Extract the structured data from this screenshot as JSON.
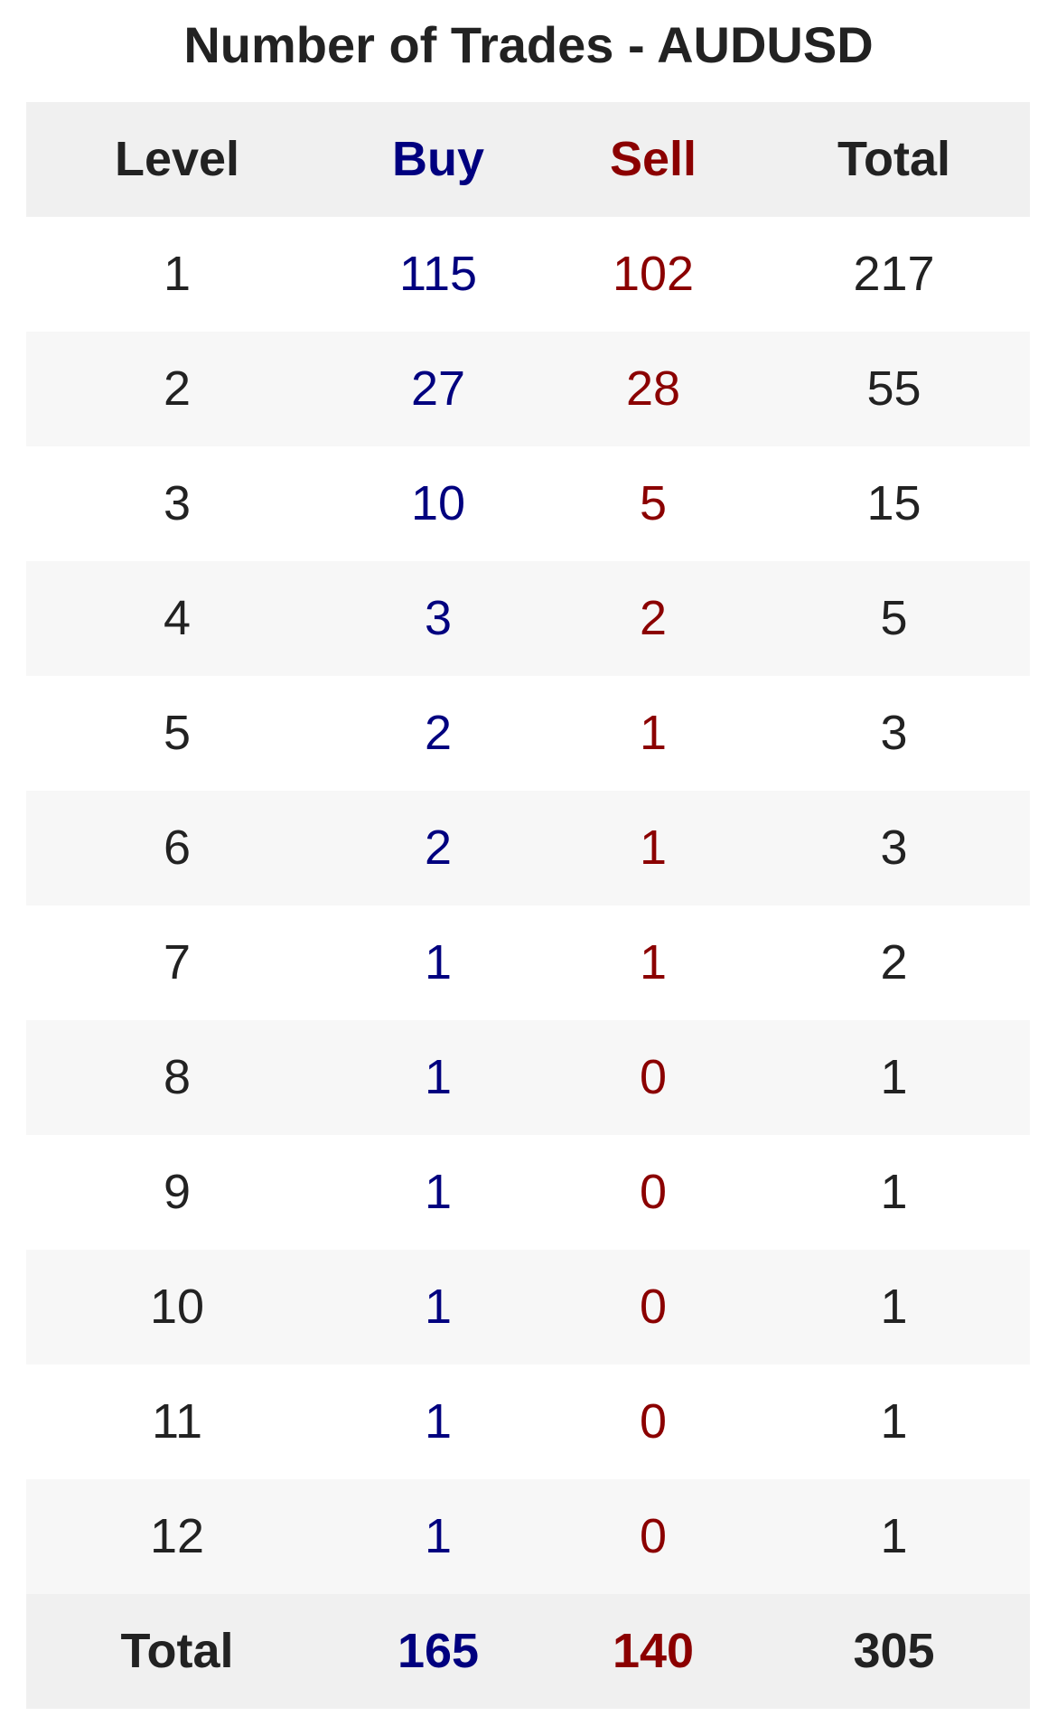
{
  "title": "Number of Trades - AUDUSD",
  "colors": {
    "text": "#222222",
    "buy": "#00007f",
    "sell": "#8b0000",
    "header_bg": "#f0f0f0",
    "stripe_bg": "#f7f7f7"
  },
  "columns": [
    "Level",
    "Buy",
    "Sell",
    "Total"
  ],
  "rows": [
    {
      "level": "1",
      "buy": "115",
      "sell": "102",
      "total": "217"
    },
    {
      "level": "2",
      "buy": "27",
      "sell": "28",
      "total": "55"
    },
    {
      "level": "3",
      "buy": "10",
      "sell": "5",
      "total": "15"
    },
    {
      "level": "4",
      "buy": "3",
      "sell": "2",
      "total": "5"
    },
    {
      "level": "5",
      "buy": "2",
      "sell": "1",
      "total": "3"
    },
    {
      "level": "6",
      "buy": "2",
      "sell": "1",
      "total": "3"
    },
    {
      "level": "7",
      "buy": "1",
      "sell": "1",
      "total": "2"
    },
    {
      "level": "8",
      "buy": "1",
      "sell": "0",
      "total": "1"
    },
    {
      "level": "9",
      "buy": "1",
      "sell": "0",
      "total": "1"
    },
    {
      "level": "10",
      "buy": "1",
      "sell": "0",
      "total": "1"
    },
    {
      "level": "11",
      "buy": "1",
      "sell": "0",
      "total": "1"
    },
    {
      "level": "12",
      "buy": "1",
      "sell": "0",
      "total": "1"
    }
  ],
  "footer": {
    "level": "Total",
    "buy": "165",
    "sell": "140",
    "total": "305"
  }
}
